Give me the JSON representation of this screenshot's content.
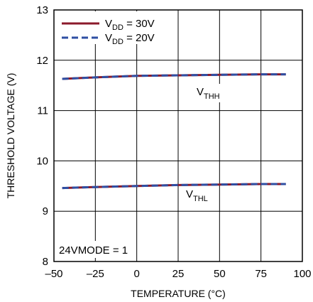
{
  "chart_data": {
    "type": "line",
    "xlabel": "TEMPERATURE (°C)",
    "ylabel": "THRESHOLD VOLTAGE (V)",
    "xlim": [
      -50,
      100
    ],
    "ylim": [
      8,
      13
    ],
    "x_ticks": [
      "–50",
      "–25",
      "0",
      "25",
      "50",
      "75",
      "100"
    ],
    "y_ticks": [
      "8",
      "9",
      "10",
      "11",
      "12",
      "13"
    ],
    "grid": true,
    "legend_position": "top-left",
    "annotation": "24VMODE = 1",
    "curve_labels": [
      {
        "main": "V",
        "sub": "THH"
      },
      {
        "main": "V",
        "sub": "THL"
      }
    ],
    "legend": [
      {
        "main": "V",
        "sub": "DD",
        "rest": " = 30V"
      },
      {
        "main": "V",
        "sub": "DD",
        "rest": " = 20V"
      }
    ],
    "series": [
      {
        "name": "VDD = 30V, VTHH",
        "color": "#8b1a2b",
        "style": "solid",
        "x": [
          -45,
          -25,
          0,
          25,
          50,
          75,
          90
        ],
        "y": [
          11.63,
          11.66,
          11.69,
          11.7,
          11.71,
          11.72,
          11.72
        ]
      },
      {
        "name": "VDD = 20V, VTHH",
        "color": "#2e4fa3",
        "style": "dashed",
        "x": [
          -45,
          -25,
          0,
          25,
          50,
          75,
          90
        ],
        "y": [
          11.63,
          11.66,
          11.69,
          11.7,
          11.71,
          11.72,
          11.72
        ]
      },
      {
        "name": "VDD = 30V, VTHL",
        "color": "#8b1a2b",
        "style": "solid",
        "x": [
          -45,
          -25,
          0,
          25,
          50,
          75,
          90
        ],
        "y": [
          9.46,
          9.48,
          9.5,
          9.52,
          9.53,
          9.54,
          9.54
        ]
      },
      {
        "name": "VDD = 20V, VTHL",
        "color": "#2e4fa3",
        "style": "dashed",
        "x": [
          -45,
          -25,
          0,
          25,
          50,
          75,
          90
        ],
        "y": [
          9.46,
          9.48,
          9.5,
          9.52,
          9.53,
          9.54,
          9.54
        ]
      }
    ]
  }
}
